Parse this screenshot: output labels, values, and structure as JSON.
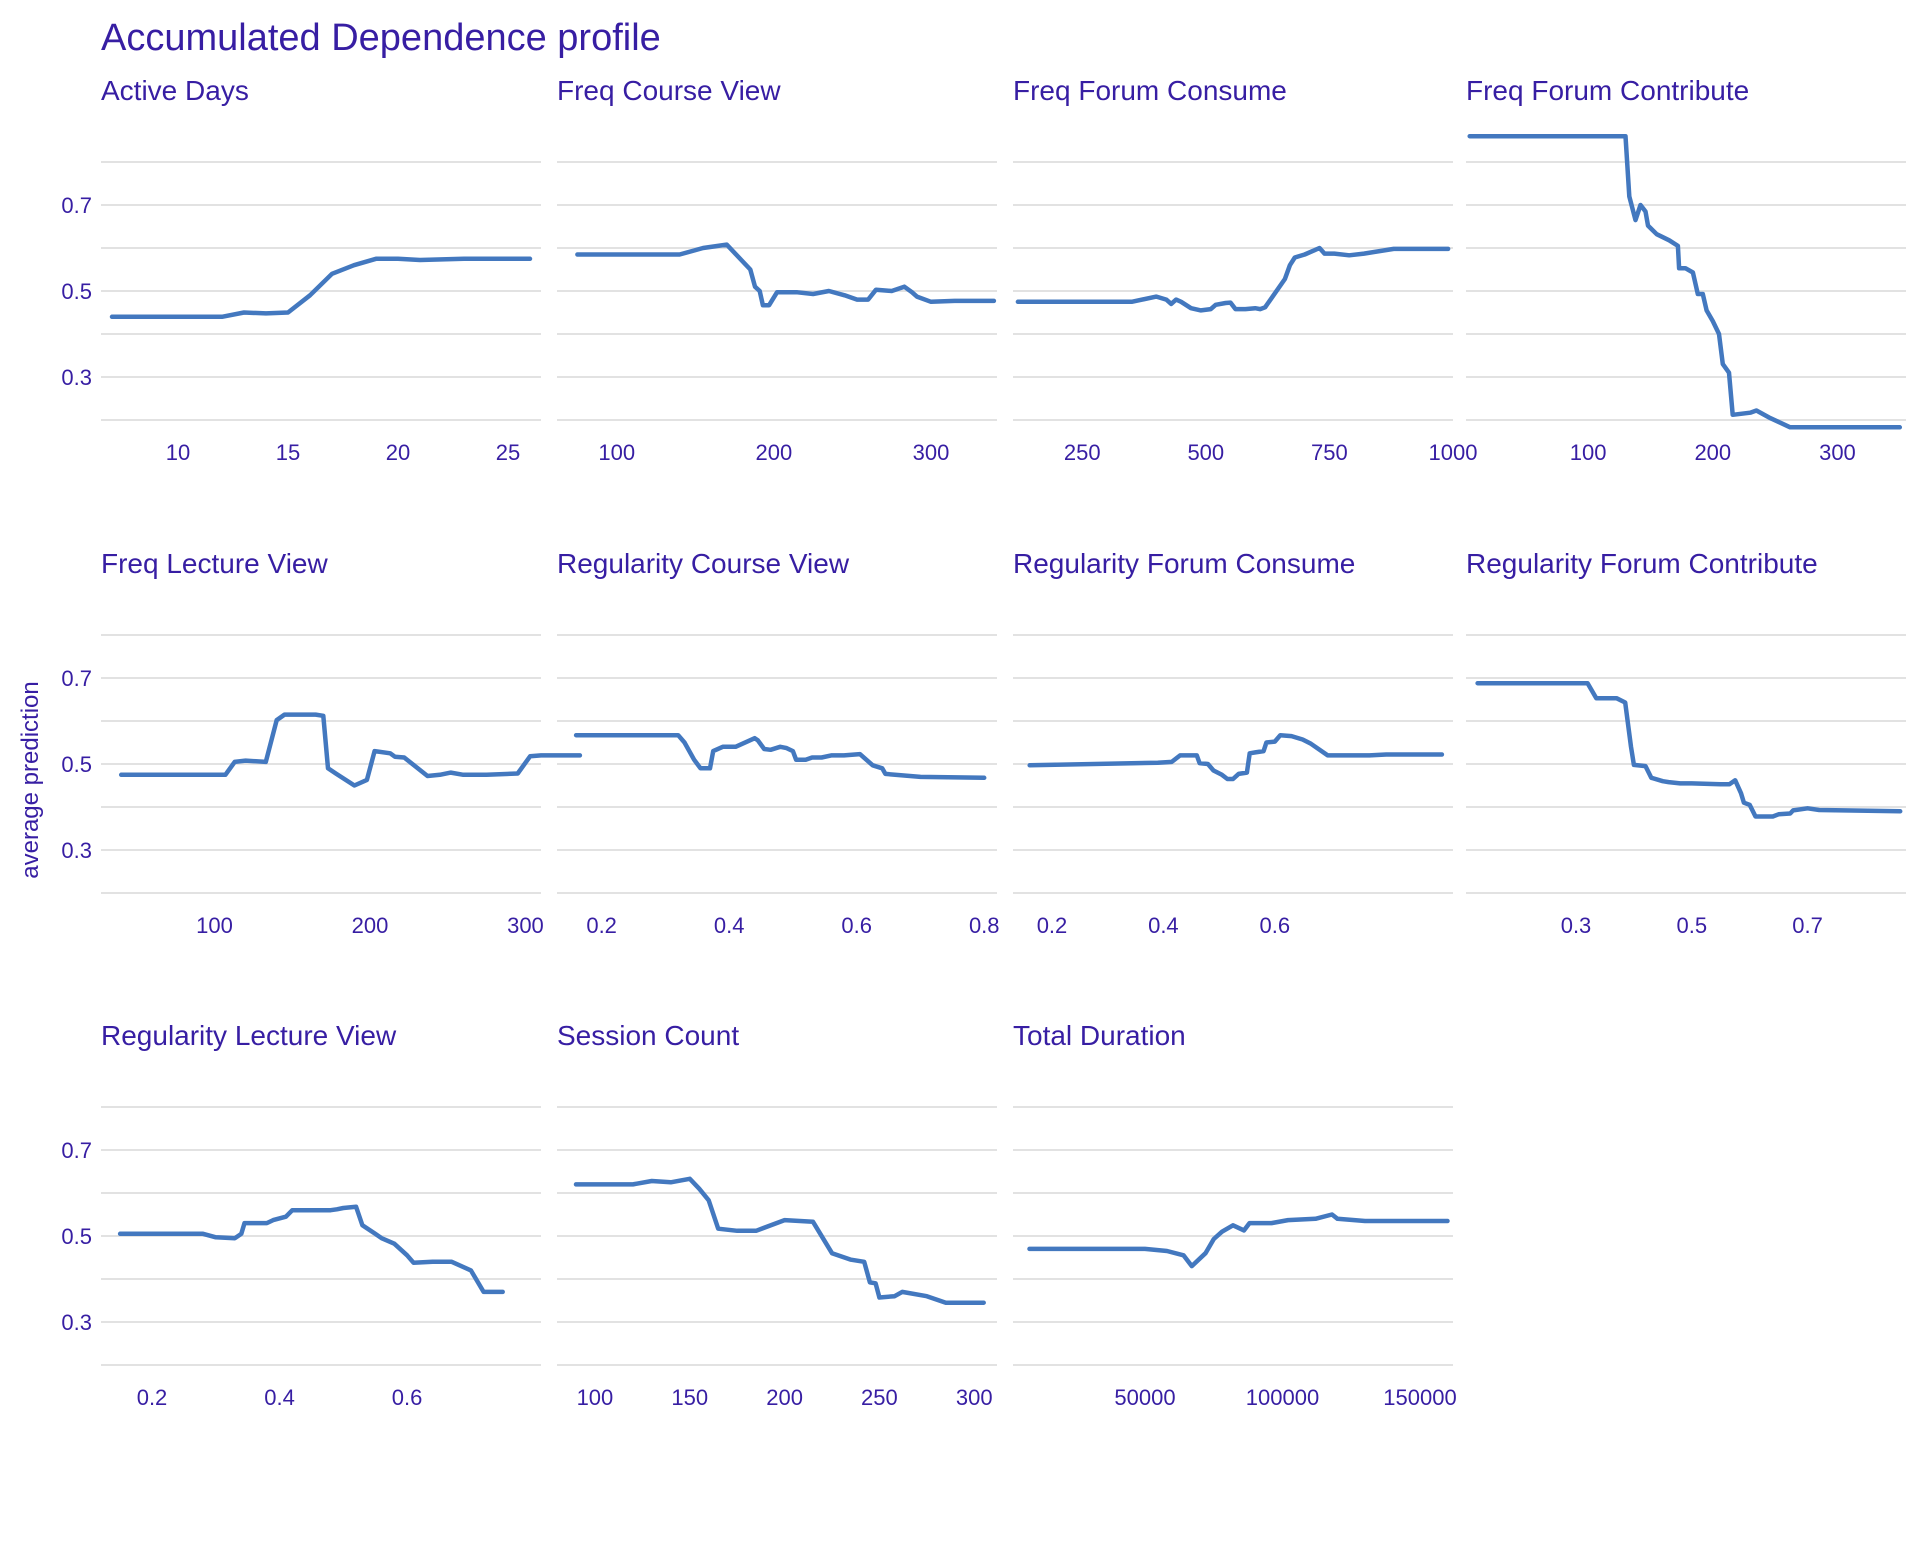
{
  "chart_data": {
    "type": "line",
    "title": "Accumulated Dependence profile",
    "ylabel": "average prediction",
    "ylim": [
      0.2,
      0.8
    ],
    "yticks": [
      0.3,
      0.5,
      0.7
    ],
    "colors": {
      "text": "#371ea3",
      "line": "#4378bf",
      "grid": "#e2e2e2"
    },
    "panels": [
      {
        "name": "Active  Days",
        "xlim": [
          6.5,
          26.5
        ],
        "xticks": [
          10,
          15,
          20,
          25
        ],
        "points": [
          [
            7,
            0.44
          ],
          [
            12,
            0.44
          ],
          [
            13,
            0.45
          ],
          [
            14,
            0.448
          ],
          [
            15,
            0.45
          ],
          [
            16,
            0.49
          ],
          [
            17,
            0.54
          ],
          [
            18,
            0.56
          ],
          [
            19,
            0.575
          ],
          [
            20,
            0.575
          ],
          [
            21,
            0.572
          ],
          [
            23,
            0.575
          ],
          [
            26,
            0.575
          ]
        ]
      },
      {
        "name": "Freq  Course  View",
        "xlim": [
          62,
          342
        ],
        "xticks": [
          100,
          200,
          300
        ],
        "points": [
          [
            75,
            0.585
          ],
          [
            140,
            0.585
          ],
          [
            155,
            0.6
          ],
          [
            170,
            0.608
          ],
          [
            185,
            0.55
          ],
          [
            188,
            0.51
          ],
          [
            191,
            0.5
          ],
          [
            193,
            0.467
          ],
          [
            197,
            0.467
          ],
          [
            202,
            0.497
          ],
          [
            215,
            0.497
          ],
          [
            225,
            0.493
          ],
          [
            235,
            0.5
          ],
          [
            245,
            0.49
          ],
          [
            253,
            0.48
          ],
          [
            260,
            0.48
          ],
          [
            265,
            0.503
          ],
          [
            275,
            0.5
          ],
          [
            283,
            0.51
          ],
          [
            288,
            0.497
          ],
          [
            291,
            0.487
          ],
          [
            300,
            0.475
          ],
          [
            315,
            0.477
          ],
          [
            340,
            0.477
          ]
        ]
      },
      {
        "name": "Freq  Forum  Consume",
        "xlim": [
          110,
          1000
        ],
        "xticks": [
          250,
          500,
          750,
          1000
        ],
        "points": [
          [
            120,
            0.475
          ],
          [
            350,
            0.475
          ],
          [
            400,
            0.487
          ],
          [
            420,
            0.48
          ],
          [
            430,
            0.47
          ],
          [
            440,
            0.48
          ],
          [
            450,
            0.475
          ],
          [
            470,
            0.46
          ],
          [
            490,
            0.455
          ],
          [
            510,
            0.458
          ],
          [
            520,
            0.468
          ],
          [
            540,
            0.472
          ],
          [
            550,
            0.473
          ],
          [
            560,
            0.458
          ],
          [
            580,
            0.458
          ],
          [
            600,
            0.46
          ],
          [
            610,
            0.458
          ],
          [
            620,
            0.462
          ],
          [
            660,
            0.528
          ],
          [
            670,
            0.56
          ],
          [
            680,
            0.578
          ],
          [
            700,
            0.585
          ],
          [
            720,
            0.595
          ],
          [
            730,
            0.6
          ],
          [
            740,
            0.587
          ],
          [
            760,
            0.587
          ],
          [
            790,
            0.583
          ],
          [
            820,
            0.587
          ],
          [
            880,
            0.598
          ],
          [
            990,
            0.598
          ]
        ]
      },
      {
        "name": "Freq  Forum  Contribute",
        "xlim": [
          2,
          355
        ],
        "xticks": [
          100,
          200,
          300
        ],
        "points": [
          [
            5,
            0.86
          ],
          [
            130,
            0.86
          ],
          [
            133,
            0.72
          ],
          [
            138,
            0.665
          ],
          [
            142,
            0.7
          ],
          [
            146,
            0.685
          ],
          [
            148,
            0.652
          ],
          [
            155,
            0.632
          ],
          [
            165,
            0.618
          ],
          [
            172,
            0.605
          ],
          [
            173,
            0.553
          ],
          [
            178,
            0.553
          ],
          [
            184,
            0.543
          ],
          [
            188,
            0.493
          ],
          [
            192,
            0.493
          ],
          [
            195,
            0.455
          ],
          [
            200,
            0.43
          ],
          [
            205,
            0.4
          ],
          [
            208,
            0.33
          ],
          [
            213,
            0.31
          ],
          [
            216,
            0.212
          ],
          [
            230,
            0.217
          ],
          [
            235,
            0.222
          ],
          [
            245,
            0.206
          ],
          [
            262,
            0.183
          ],
          [
            350,
            0.183
          ]
        ]
      },
      {
        "name": "Freq  Lecture  View",
        "xlim": [
          27,
          310
        ],
        "xticks": [
          100,
          200,
          300
        ],
        "points": [
          [
            40,
            0.475
          ],
          [
            107,
            0.475
          ],
          [
            113,
            0.505
          ],
          [
            120,
            0.508
          ],
          [
            133,
            0.505
          ],
          [
            140,
            0.602
          ],
          [
            145,
            0.615
          ],
          [
            165,
            0.615
          ],
          [
            170,
            0.612
          ],
          [
            173,
            0.49
          ],
          [
            178,
            0.478
          ],
          [
            190,
            0.45
          ],
          [
            198,
            0.463
          ],
          [
            203,
            0.53
          ],
          [
            213,
            0.525
          ],
          [
            216,
            0.517
          ],
          [
            222,
            0.515
          ],
          [
            237,
            0.472
          ],
          [
            245,
            0.475
          ],
          [
            252,
            0.48
          ],
          [
            260,
            0.475
          ],
          [
            275,
            0.475
          ],
          [
            295,
            0.478
          ],
          [
            303,
            0.518
          ],
          [
            310,
            0.52
          ],
          [
            335,
            0.52
          ]
        ]
      },
      {
        "name": "Regularity  Course  View",
        "xlim": [
          0.13,
          0.82
        ],
        "xticks": [
          0.2,
          0.4,
          0.6,
          0.8
        ],
        "points": [
          [
            0.16,
            0.567
          ],
          [
            0.32,
            0.567
          ],
          [
            0.33,
            0.55
          ],
          [
            0.345,
            0.51
          ],
          [
            0.355,
            0.49
          ],
          [
            0.37,
            0.49
          ],
          [
            0.375,
            0.53
          ],
          [
            0.39,
            0.54
          ],
          [
            0.41,
            0.54
          ],
          [
            0.44,
            0.56
          ],
          [
            0.445,
            0.555
          ],
          [
            0.455,
            0.535
          ],
          [
            0.465,
            0.533
          ],
          [
            0.48,
            0.54
          ],
          [
            0.49,
            0.537
          ],
          [
            0.5,
            0.53
          ],
          [
            0.505,
            0.51
          ],
          [
            0.52,
            0.51
          ],
          [
            0.53,
            0.515
          ],
          [
            0.545,
            0.515
          ],
          [
            0.56,
            0.52
          ],
          [
            0.58,
            0.52
          ],
          [
            0.605,
            0.523
          ],
          [
            0.615,
            0.51
          ],
          [
            0.625,
            0.497
          ],
          [
            0.64,
            0.49
          ],
          [
            0.645,
            0.477
          ],
          [
            0.7,
            0.47
          ],
          [
            0.8,
            0.468
          ]
        ]
      },
      {
        "name": "Regularity  Forum  Consume",
        "xlim": [
          0.13,
          0.92
        ],
        "xticks": [
          0.2,
          0.4,
          0.6
        ],
        "points": [
          [
            0.16,
            0.497
          ],
          [
            0.39,
            0.503
          ],
          [
            0.415,
            0.505
          ],
          [
            0.43,
            0.52
          ],
          [
            0.46,
            0.52
          ],
          [
            0.465,
            0.502
          ],
          [
            0.48,
            0.5
          ],
          [
            0.49,
            0.485
          ],
          [
            0.505,
            0.475
          ],
          [
            0.515,
            0.465
          ],
          [
            0.525,
            0.465
          ],
          [
            0.535,
            0.477
          ],
          [
            0.55,
            0.48
          ],
          [
            0.555,
            0.525
          ],
          [
            0.565,
            0.527
          ],
          [
            0.58,
            0.53
          ],
          [
            0.585,
            0.55
          ],
          [
            0.6,
            0.552
          ],
          [
            0.61,
            0.567
          ],
          [
            0.63,
            0.565
          ],
          [
            0.65,
            0.557
          ],
          [
            0.665,
            0.547
          ],
          [
            0.695,
            0.52
          ],
          [
            0.71,
            0.52
          ],
          [
            0.77,
            0.52
          ],
          [
            0.8,
            0.522
          ],
          [
            0.9,
            0.522
          ]
        ]
      },
      {
        "name": "Regularity  Forum  Contribute",
        "xlim": [
          0.11,
          0.87
        ],
        "xticks": [
          0.3,
          0.5,
          0.7
        ],
        "points": [
          [
            0.13,
            0.688
          ],
          [
            0.32,
            0.688
          ],
          [
            0.335,
            0.653
          ],
          [
            0.37,
            0.653
          ],
          [
            0.385,
            0.643
          ],
          [
            0.395,
            0.54
          ],
          [
            0.4,
            0.498
          ],
          [
            0.42,
            0.495
          ],
          [
            0.43,
            0.468
          ],
          [
            0.45,
            0.46
          ],
          [
            0.46,
            0.458
          ],
          [
            0.48,
            0.455
          ],
          [
            0.5,
            0.455
          ],
          [
            0.55,
            0.453
          ],
          [
            0.565,
            0.453
          ],
          [
            0.575,
            0.462
          ],
          [
            0.585,
            0.432
          ],
          [
            0.59,
            0.41
          ],
          [
            0.6,
            0.405
          ],
          [
            0.61,
            0.378
          ],
          [
            0.64,
            0.378
          ],
          [
            0.65,
            0.383
          ],
          [
            0.67,
            0.385
          ],
          [
            0.675,
            0.392
          ],
          [
            0.7,
            0.397
          ],
          [
            0.72,
            0.393
          ],
          [
            0.86,
            0.39
          ]
        ]
      },
      {
        "name": "Regularity  Lecture  View",
        "xlim": [
          0.12,
          0.81
        ],
        "xticks": [
          0.2,
          0.4,
          0.6
        ],
        "points": [
          [
            0.15,
            0.505
          ],
          [
            0.24,
            0.505
          ],
          [
            0.28,
            0.505
          ],
          [
            0.3,
            0.497
          ],
          [
            0.33,
            0.495
          ],
          [
            0.34,
            0.505
          ],
          [
            0.345,
            0.53
          ],
          [
            0.38,
            0.53
          ],
          [
            0.39,
            0.537
          ],
          [
            0.41,
            0.545
          ],
          [
            0.42,
            0.56
          ],
          [
            0.46,
            0.56
          ],
          [
            0.48,
            0.56
          ],
          [
            0.49,
            0.562
          ],
          [
            0.5,
            0.565
          ],
          [
            0.52,
            0.568
          ],
          [
            0.53,
            0.525
          ],
          [
            0.55,
            0.505
          ],
          [
            0.56,
            0.495
          ],
          [
            0.58,
            0.482
          ],
          [
            0.6,
            0.455
          ],
          [
            0.61,
            0.438
          ],
          [
            0.64,
            0.44
          ],
          [
            0.67,
            0.44
          ],
          [
            0.7,
            0.42
          ],
          [
            0.72,
            0.37
          ],
          [
            0.75,
            0.37
          ]
        ]
      },
      {
        "name": "Session  Count",
        "xlim": [
          80,
          312
        ],
        "xticks": [
          100,
          150,
          200,
          250,
          300
        ],
        "points": [
          [
            90,
            0.62
          ],
          [
            120,
            0.62
          ],
          [
            130,
            0.628
          ],
          [
            140,
            0.625
          ],
          [
            150,
            0.633
          ],
          [
            155,
            0.61
          ],
          [
            160,
            0.583
          ],
          [
            165,
            0.517
          ],
          [
            175,
            0.512
          ],
          [
            185,
            0.512
          ],
          [
            200,
            0.537
          ],
          [
            215,
            0.533
          ],
          [
            225,
            0.46
          ],
          [
            235,
            0.445
          ],
          [
            242,
            0.44
          ],
          [
            245,
            0.392
          ],
          [
            248,
            0.39
          ],
          [
            250,
            0.357
          ],
          [
            258,
            0.36
          ],
          [
            262,
            0.37
          ],
          [
            275,
            0.36
          ],
          [
            285,
            0.345
          ],
          [
            305,
            0.345
          ]
        ]
      },
      {
        "name": "Total  Duration",
        "xlim": [
          2000,
          162000
        ],
        "xticks": [
          50000,
          100000,
          150000
        ],
        "points": [
          [
            8000,
            0.47
          ],
          [
            50000,
            0.47
          ],
          [
            58000,
            0.465
          ],
          [
            64000,
            0.455
          ],
          [
            67000,
            0.43
          ],
          [
            72000,
            0.46
          ],
          [
            75000,
            0.493
          ],
          [
            78000,
            0.51
          ],
          [
            82000,
            0.525
          ],
          [
            86000,
            0.513
          ],
          [
            88000,
            0.53
          ],
          [
            96000,
            0.53
          ],
          [
            102000,
            0.537
          ],
          [
            112000,
            0.54
          ],
          [
            118000,
            0.55
          ],
          [
            120000,
            0.54
          ],
          [
            130000,
            0.535
          ],
          [
            148000,
            0.535
          ],
          [
            160000,
            0.535
          ]
        ]
      }
    ]
  }
}
